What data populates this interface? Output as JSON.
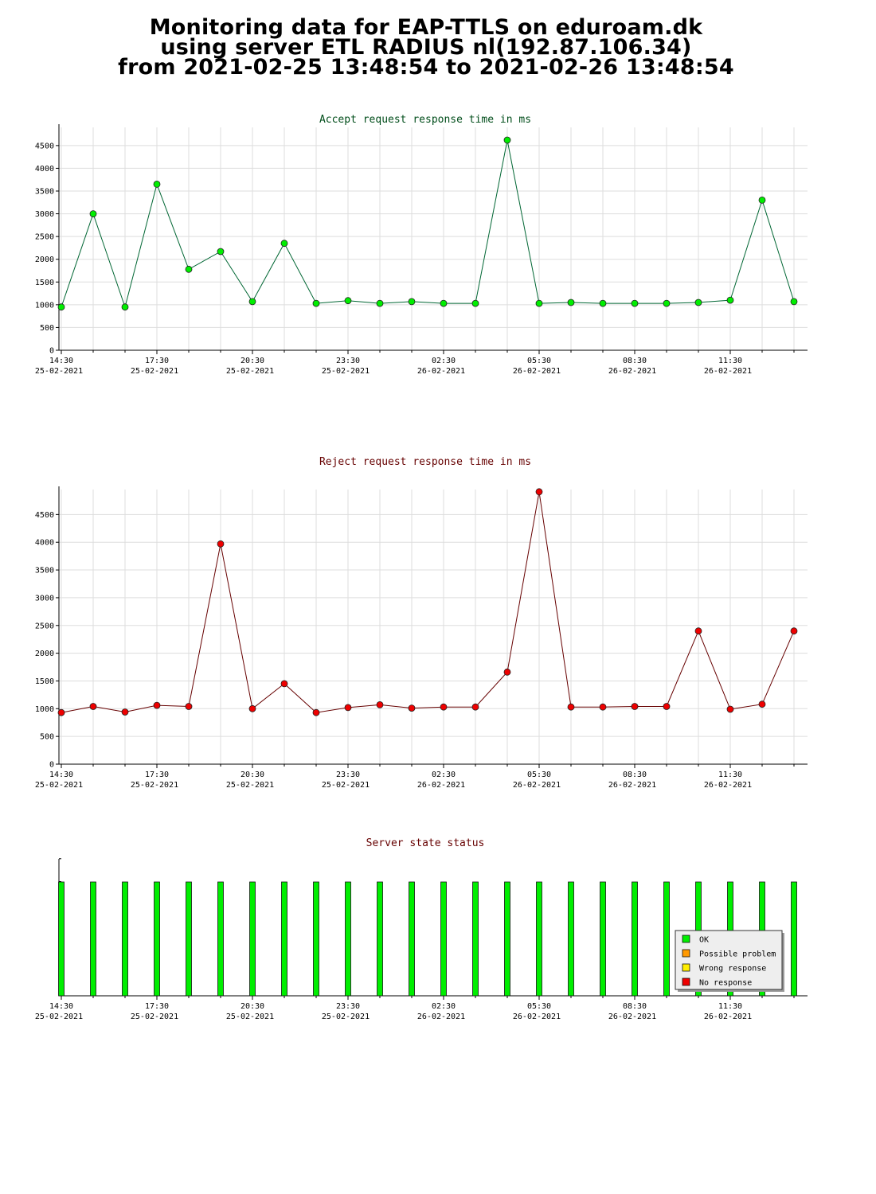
{
  "header": {
    "line1": "Monitoring data for EAP-TTLS on eduroam.dk",
    "line2": "using server ETL RADIUS nl(192.87.106.34)",
    "line3": "from 2021-02-25 13:48:54 to 2021-02-26 13:48:54"
  },
  "colors": {
    "accept_marker": "#00ee00",
    "accept_line": "#006633",
    "reject_marker": "#ee0000",
    "reject_line": "#660000",
    "grid": "#dddddd",
    "ok": "#00ee00",
    "possible_problem": "#ff9900",
    "wrong_response": "#ffee00",
    "no_response": "#ee0000"
  },
  "x_ticks": [
    {
      "time": "14:30",
      "date": "25-02-2021"
    },
    {
      "time": "17:30",
      "date": "25-02-2021"
    },
    {
      "time": "20:30",
      "date": "25-02-2021"
    },
    {
      "time": "23:30",
      "date": "25-02-2021"
    },
    {
      "time": "02:30",
      "date": "26-02-2021"
    },
    {
      "time": "05:30",
      "date": "26-02-2021"
    },
    {
      "time": "08:30",
      "date": "26-02-2021"
    },
    {
      "time": "11:30",
      "date": "26-02-2021"
    }
  ],
  "chart_data": [
    {
      "type": "line",
      "title": "Accept request response time in ms",
      "ylim": [
        0,
        4900
      ],
      "yticks": [
        0,
        500,
        1000,
        1500,
        2000,
        2500,
        3000,
        3500,
        4000,
        4500
      ],
      "grid": true,
      "values": [
        950,
        3000,
        950,
        3650,
        1780,
        2170,
        1070,
        2350,
        1030,
        1090,
        1030,
        1070,
        1030,
        1030,
        4620,
        1030,
        1050,
        1030,
        1030,
        1030,
        1050,
        1100,
        3300,
        1070
      ]
    },
    {
      "type": "line",
      "title": "Reject request response time in ms",
      "ylim": [
        0,
        4950
      ],
      "yticks": [
        0,
        500,
        1000,
        1500,
        2000,
        2500,
        3000,
        3500,
        4000,
        4500
      ],
      "grid": true,
      "values": [
        930,
        1040,
        940,
        1060,
        1040,
        3970,
        1000,
        1450,
        930,
        1020,
        1070,
        1010,
        1030,
        1030,
        1660,
        4910,
        1030,
        1030,
        1040,
        1040,
        2400,
        990,
        1080,
        2400
      ]
    },
    {
      "type": "bar",
      "title": "Server state status",
      "states": [
        "OK",
        "OK",
        "OK",
        "OK",
        "OK",
        "OK",
        "OK",
        "OK",
        "OK",
        "OK",
        "OK",
        "OK",
        "OK",
        "OK",
        "OK",
        "OK",
        "OK",
        "OK",
        "OK",
        "OK",
        "OK",
        "OK",
        "OK",
        "OK"
      ],
      "legend": [
        "OK",
        "Possible problem",
        "Wrong response",
        "No response"
      ],
      "legend_position": "bottom-right"
    }
  ]
}
